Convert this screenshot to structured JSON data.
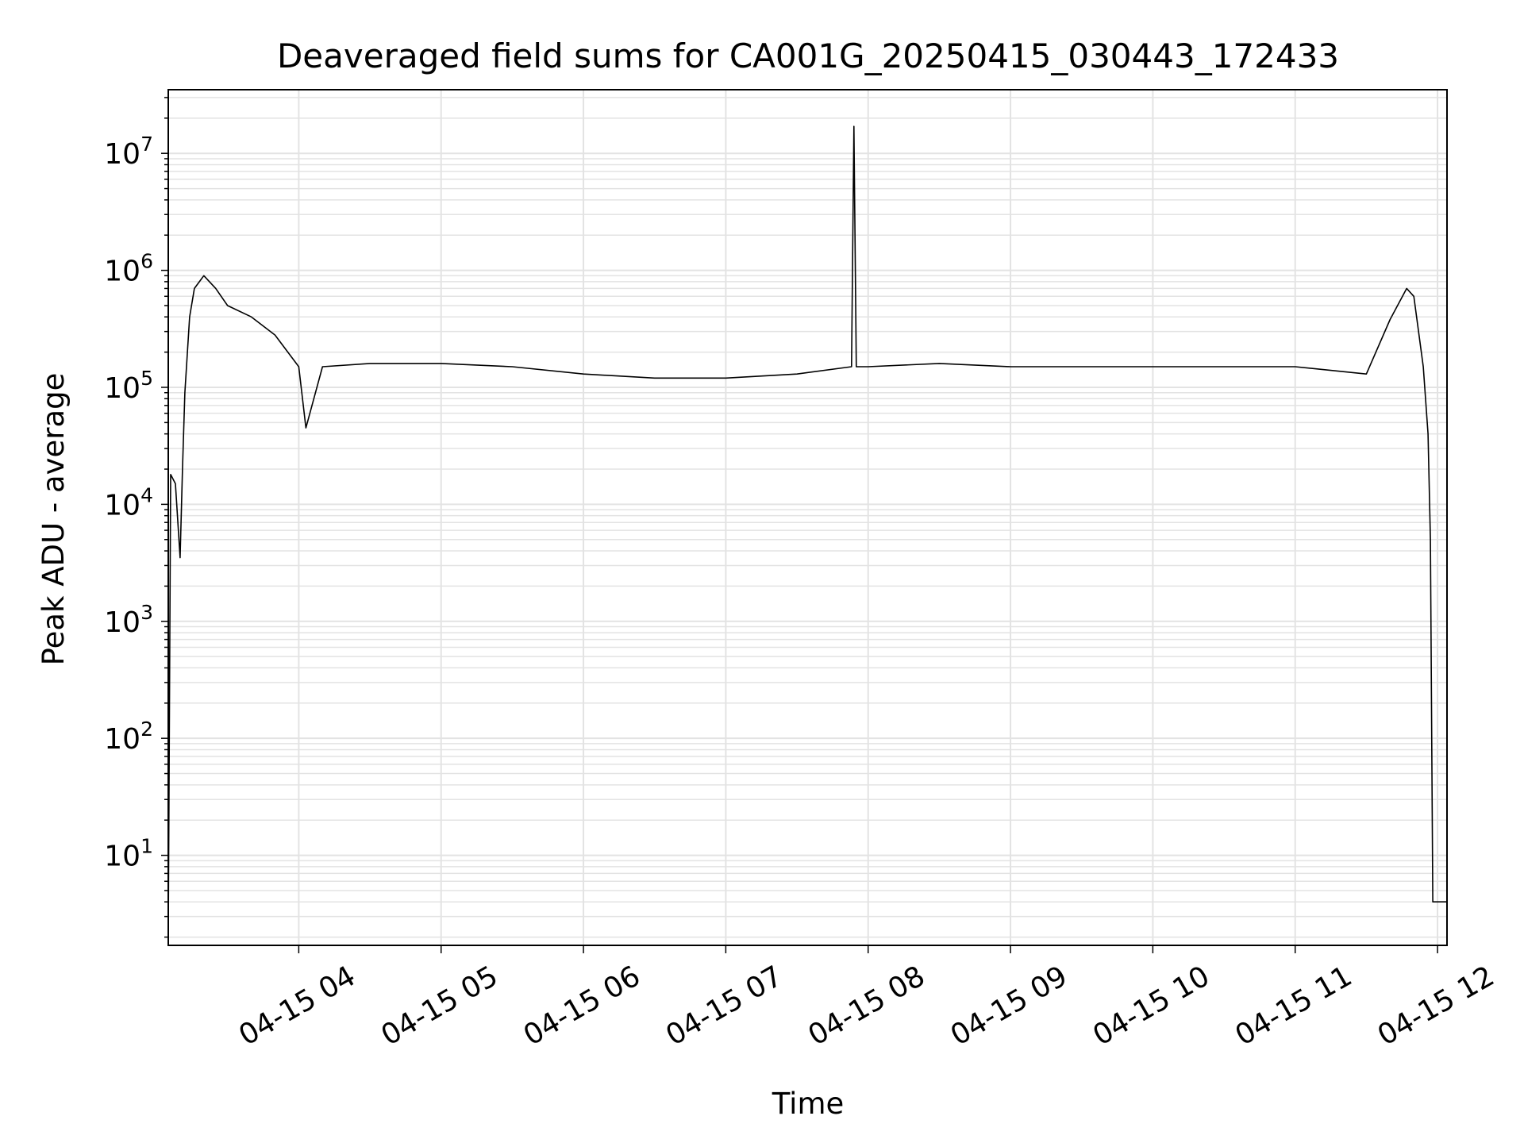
{
  "chart_data": {
    "type": "line",
    "title": "Deaveraged field sums for CA001G_20250415_030443_172433",
    "xlabel": "Time",
    "ylabel": "Peak ADU - average",
    "yscale": "log",
    "grid": true,
    "line_color": "#000000",
    "grid_color": "#e3e3e3",
    "xlim": [
      "04-15 03:05",
      "04-15 12:04"
    ],
    "ylim": [
      1.7,
      35000000
    ],
    "x_ticks": [
      "04-15 04",
      "04-15 05",
      "04-15 06",
      "04-15 07",
      "04-15 08",
      "04-15 09",
      "04-15 10",
      "04-15 11",
      "04-15 12"
    ],
    "y_ticks": [
      {
        "base": "10",
        "exp": "1",
        "value": 10
      },
      {
        "base": "10",
        "exp": "2",
        "value": 100
      },
      {
        "base": "10",
        "exp": "3",
        "value": 1000
      },
      {
        "base": "10",
        "exp": "4",
        "value": 10000
      },
      {
        "base": "10",
        "exp": "5",
        "value": 100000
      },
      {
        "base": "10",
        "exp": "6",
        "value": 1000000
      },
      {
        "base": "10",
        "exp": "7",
        "value": 10000000
      }
    ],
    "series": [
      {
        "x": [
          "04-15 03:05",
          "04-15 03:06",
          "04-15 03:08",
          "04-15 03:10",
          "04-15 03:11",
          "04-15 03:12",
          "04-15 03:14",
          "04-15 03:16",
          "04-15 03:20",
          "04-15 03:25",
          "04-15 03:30",
          "04-15 03:40",
          "04-15 03:50",
          "04-15 04:00",
          "04-15 04:03",
          "04-15 04:10",
          "04-15 04:30",
          "04-15 05:00",
          "04-15 05:30",
          "04-15 06:00",
          "04-15 06:30",
          "04-15 07:00",
          "04-15 07:30",
          "04-15 07:53",
          "04-15 07:54",
          "04-15 07:55",
          "04-15 08:00",
          "04-15 08:30",
          "04-15 09:00",
          "04-15 09:30",
          "04-15 10:00",
          "04-15 10:30",
          "04-15 11:00",
          "04-15 11:30",
          "04-15 11:40",
          "04-15 11:47",
          "04-15 11:50",
          "04-15 11:54",
          "04-15 11:56",
          "04-15 11:57",
          "04-15 11:58",
          "04-15 12:04"
        ],
        "y": [
          2,
          18000,
          15000,
          3500,
          20000,
          90000,
          400000,
          700000,
          900000,
          700000,
          500000,
          400000,
          280000,
          150000,
          45000,
          150000,
          160000,
          160000,
          150000,
          130000,
          120000,
          120000,
          130000,
          150000,
          17000000,
          150000,
          150000,
          160000,
          150000,
          150000,
          150000,
          150000,
          150000,
          130000,
          380000,
          700000,
          600000,
          150000,
          40000,
          5000,
          4,
          4
        ]
      }
    ]
  }
}
